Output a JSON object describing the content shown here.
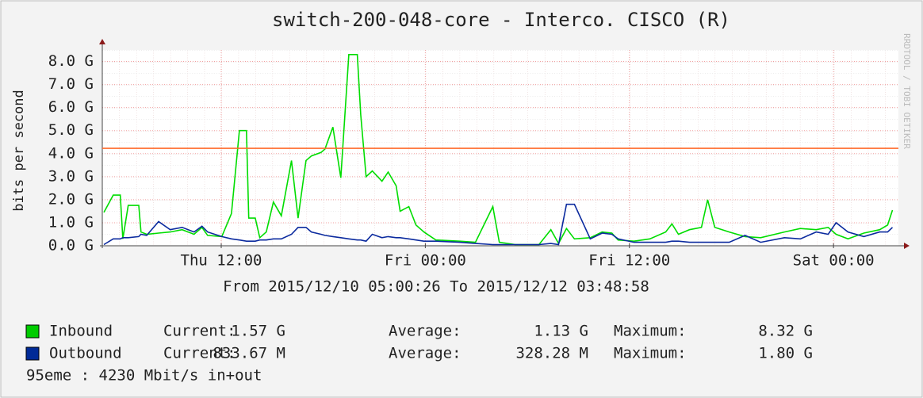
{
  "chart_data": {
    "type": "line",
    "title": "switch-200-048-core - Interco. CISCO (R)",
    "subtitle": "From 2015/12/10 05:00:26 To 2015/12/12 03:48:58",
    "y_label": "bits per second",
    "watermark": "RRDTOOL / TOBI OETIKER",
    "footer": "95eme : 4230 Mbit/s in+out",
    "grid": true,
    "hrule": {
      "value": 4.23,
      "color": "#ff6a2a"
    },
    "xlim": [
      "2015-12-10T05:00:26",
      "2015-12-12T03:48:58"
    ],
    "xticks": [
      {
        "value": "2015-12-10T12:00",
        "label": "Thu 12:00"
      },
      {
        "value": "2015-12-11T00:00",
        "label": "Fri 00:00"
      },
      {
        "value": "2015-12-11T12:00",
        "label": "Fri 12:00"
      },
      {
        "value": "2015-12-12T00:00",
        "label": "Sat 00:00"
      }
    ],
    "ylim": [
      0,
      8.5
    ],
    "yticks": [
      {
        "value": 0,
        "label": "0.0 G"
      },
      {
        "value": 1,
        "label": "1.0 G"
      },
      {
        "value": 2,
        "label": "2.0 G"
      },
      {
        "value": 3,
        "label": "3.0 G"
      },
      {
        "value": 4,
        "label": "4.0 G"
      },
      {
        "value": 5,
        "label": "5.0 G"
      },
      {
        "value": 6,
        "label": "6.0 G"
      },
      {
        "value": 7,
        "label": "7.0 G"
      },
      {
        "value": 8,
        "label": "8.0 G"
      }
    ],
    "x": [
      "2015-12-10T05:06",
      "2015-12-10T05:39",
      "2015-12-10T06:04",
      "2015-12-10T06:13",
      "2015-12-10T06:32",
      "2015-12-10T07:09",
      "2015-12-10T07:17",
      "2015-12-10T07:37",
      "2015-12-10T08:19",
      "2015-12-10T09:00",
      "2015-12-10T09:42",
      "2015-12-10T10:24",
      "2015-12-10T10:52",
      "2015-12-10T11:12",
      "2015-12-10T12:02",
      "2015-12-10T12:36",
      "2015-12-10T13:04",
      "2015-12-10T13:29",
      "2015-12-10T13:37",
      "2015-12-10T14:00",
      "2015-12-10T14:16",
      "2015-12-10T14:39",
      "2015-12-10T15:04",
      "2015-12-10T15:32",
      "2015-12-10T16:08",
      "2015-12-10T16:31",
      "2015-12-10T16:59",
      "2015-12-10T17:18",
      "2015-12-10T17:52",
      "2015-12-10T18:06",
      "2015-12-10T18:34",
      "2015-12-10T19:02",
      "2015-12-10T19:30",
      "2015-12-10T20:00",
      "2015-12-10T20:12",
      "2015-12-10T20:31",
      "2015-12-10T20:53",
      "2015-12-10T21:27",
      "2015-12-10T21:49",
      "2015-12-10T22:17",
      "2015-12-10T22:31",
      "2015-12-10T23:02",
      "2015-12-10T23:27",
      "2015-12-10T23:55",
      "2015-12-11T00:37",
      "2015-12-11T02:01",
      "2015-12-11T02:57",
      "2015-12-11T03:58",
      "2015-12-11T04:21",
      "2015-12-11T05:17",
      "2015-12-11T06:41",
      "2015-12-11T07:23",
      "2015-12-11T07:50",
      "2015-12-11T08:18",
      "2015-12-11T08:46",
      "2015-12-11T09:42",
      "2015-12-11T10:24",
      "2015-12-11T10:58",
      "2015-12-11T11:20",
      "2015-12-11T12:16",
      "2015-12-11T13:12",
      "2015-12-11T14:08",
      "2015-12-11T14:30",
      "2015-12-11T14:53",
      "2015-12-11T15:32",
      "2015-12-11T16:14",
      "2015-12-11T16:36",
      "2015-12-11T17:01",
      "2015-12-11T17:52",
      "2015-12-11T18:48",
      "2015-12-11T19:43",
      "2015-12-11T21:07",
      "2015-12-11T22:03",
      "2015-12-11T22:59",
      "2015-12-11T23:41",
      "2015-12-12T00:09",
      "2015-12-12T00:51",
      "2015-12-12T01:47",
      "2015-12-12T02:43",
      "2015-12-12T03:11",
      "2015-12-12T03:28"
    ],
    "series": [
      {
        "name": "Inbound",
        "color": "#00dd00",
        "legend_color": "#00cc00",
        "stats": [
          {
            "label": "Current:",
            "value": "1.57 G"
          },
          {
            "label": "Average:",
            "value": "1.13 G"
          },
          {
            "label": "Maximum:",
            "value": "8.32 G"
          }
        ],
        "values": [
          1.45,
          2.2,
          2.2,
          0.3,
          1.75,
          1.75,
          0.6,
          0.5,
          0.55,
          0.6,
          0.7,
          0.5,
          0.8,
          0.45,
          0.4,
          1.4,
          5.0,
          5.0,
          1.2,
          1.2,
          0.35,
          0.6,
          1.9,
          1.3,
          3.7,
          1.2,
          3.7,
          3.9,
          4.05,
          4.2,
          5.15,
          2.95,
          8.3,
          8.3,
          5.7,
          3.0,
          3.25,
          2.8,
          3.2,
          2.6,
          1.5,
          1.7,
          0.9,
          0.6,
          0.25,
          0.2,
          0.15,
          1.7,
          0.15,
          0.05,
          0.05,
          0.7,
          0.1,
          0.75,
          0.3,
          0.35,
          0.6,
          0.55,
          0.25,
          0.2,
          0.3,
          0.6,
          0.95,
          0.5,
          0.7,
          0.8,
          2.0,
          0.8,
          0.6,
          0.4,
          0.35,
          0.6,
          0.75,
          0.7,
          0.8,
          0.5,
          0.3,
          0.55,
          0.7,
          0.9,
          1.55
        ]
      },
      {
        "name": "Outbound",
        "color": "#0b2a9e",
        "legend_color": "#002a97",
        "stats": [
          {
            "label": "Current:",
            "value": "833.67 M"
          },
          {
            "label": "Average:",
            "value": "328.28 M"
          },
          {
            "label": "Maximum:",
            "value": "1.80 G"
          }
        ],
        "values": [
          0.05,
          0.3,
          0.3,
          0.35,
          0.35,
          0.4,
          0.5,
          0.45,
          1.05,
          0.7,
          0.8,
          0.6,
          0.85,
          0.6,
          0.4,
          0.3,
          0.25,
          0.2,
          0.2,
          0.2,
          0.25,
          0.25,
          0.3,
          0.3,
          0.5,
          0.8,
          0.8,
          0.6,
          0.5,
          0.45,
          0.4,
          0.35,
          0.3,
          0.25,
          0.25,
          0.2,
          0.5,
          0.35,
          0.4,
          0.35,
          0.35,
          0.3,
          0.25,
          0.2,
          0.2,
          0.15,
          0.1,
          0.05,
          0.05,
          0.05,
          0.05,
          0.1,
          0.05,
          1.8,
          1.8,
          0.3,
          0.55,
          0.5,
          0.3,
          0.15,
          0.15,
          0.15,
          0.2,
          0.2,
          0.15,
          0.15,
          0.15,
          0.15,
          0.15,
          0.45,
          0.15,
          0.35,
          0.3,
          0.6,
          0.5,
          1.0,
          0.6,
          0.4,
          0.6,
          0.6,
          0.8
        ]
      }
    ]
  }
}
